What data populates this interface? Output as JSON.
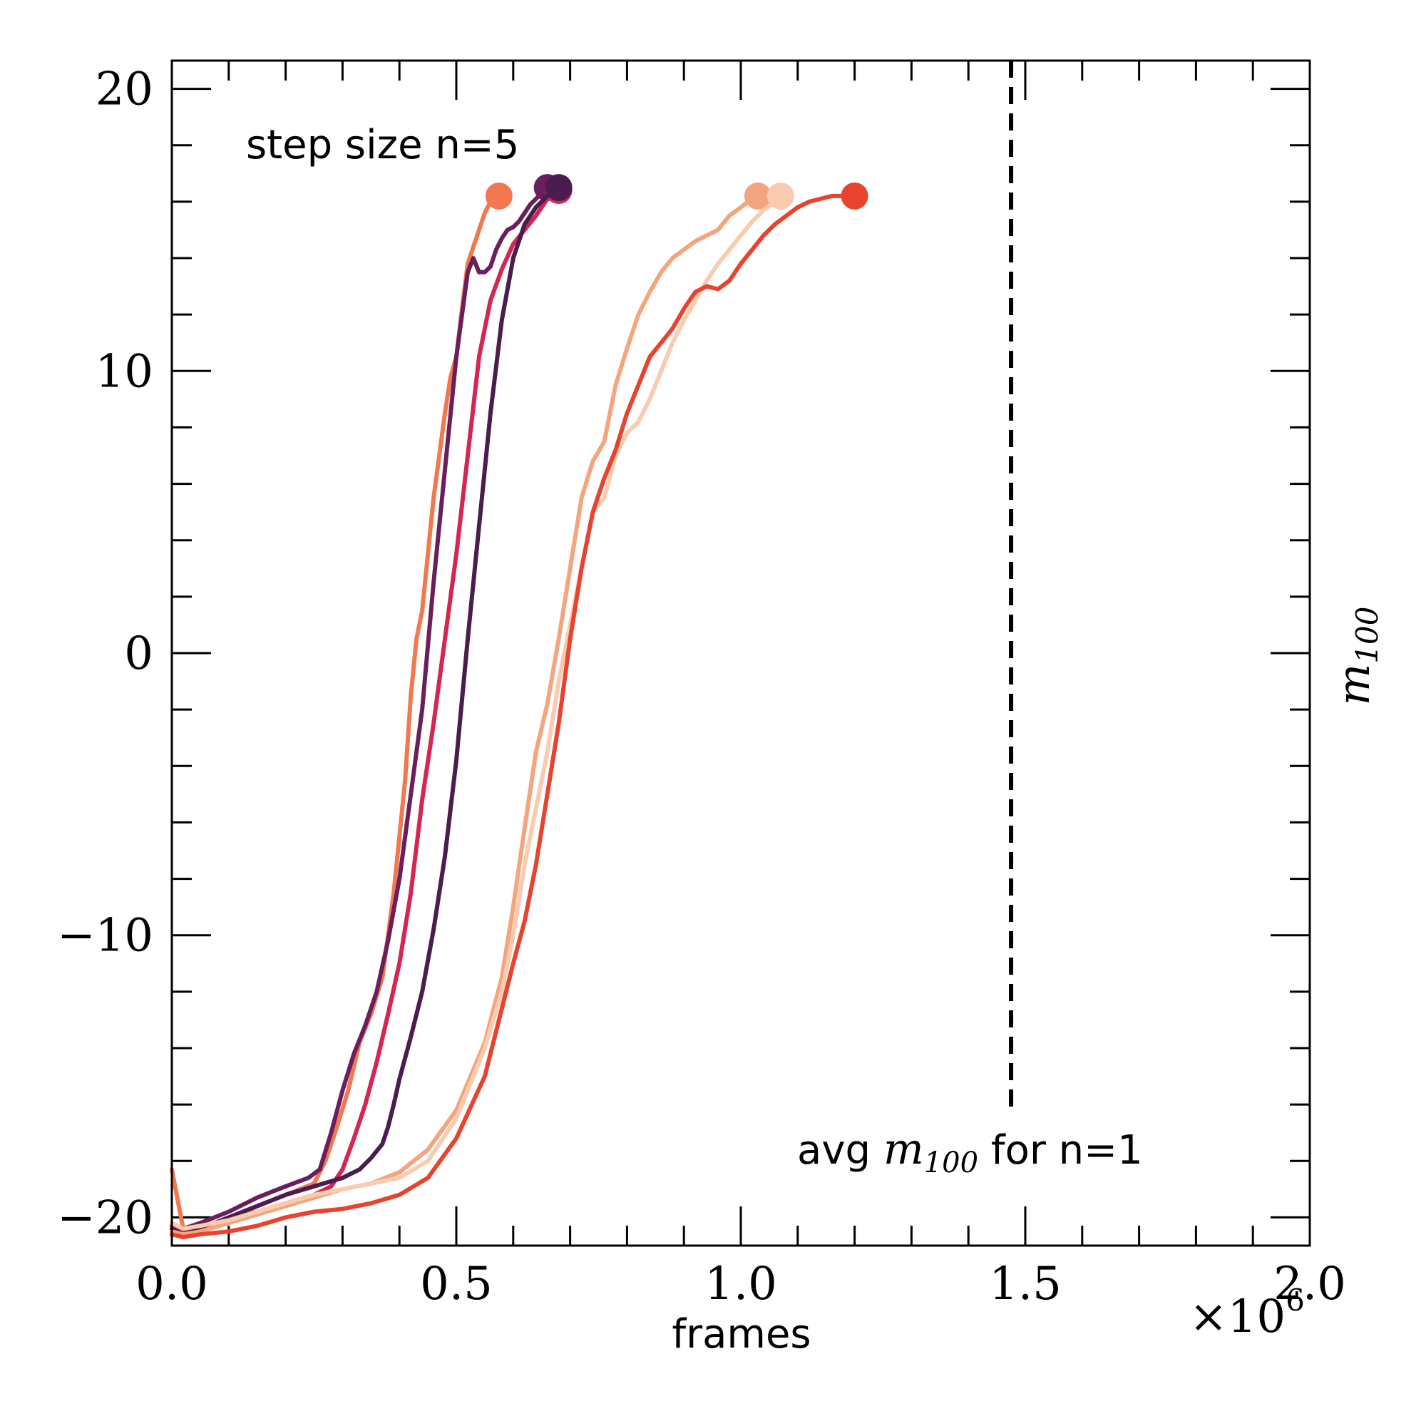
{
  "chart_data": {
    "type": "line",
    "xlabel": "frames",
    "ylabel": "m",
    "ylabel_subscript": "100",
    "x_multiplier": "×10",
    "x_multiplier_exponent": "6",
    "xlim": [
      0,
      2.0
    ],
    "ylim": [
      -21,
      21
    ],
    "x_ticks": [
      0.0,
      0.5,
      1.0,
      1.5,
      2.0
    ],
    "x_tick_labels": [
      "0.0",
      "0.5",
      "1.0",
      "1.5",
      "2.0"
    ],
    "y_ticks": [
      -20,
      -10,
      0,
      10,
      20
    ],
    "y_tick_labels": [
      "−20",
      "−10",
      "0",
      "10",
      "20"
    ],
    "grid": false,
    "annotation_top": "step size n=5",
    "annotation_bottom": {
      "prefix": "avg ",
      "math": "m",
      "math_subscript": "100",
      "suffix": " for n=1"
    },
    "reference_line": {
      "x": 1.475,
      "style": "dashed",
      "color": "#000000"
    },
    "series": [
      {
        "color": "#f3774f",
        "end_marker": true,
        "x": [
          0.0,
          0.02,
          0.05,
          0.1,
          0.15,
          0.2,
          0.25,
          0.27,
          0.29,
          0.31,
          0.33,
          0.35,
          0.37,
          0.39,
          0.4,
          0.41,
          0.42,
          0.43,
          0.44,
          0.45,
          0.46,
          0.47,
          0.48,
          0.49,
          0.5,
          0.51,
          0.52,
          0.53,
          0.54,
          0.55,
          0.56,
          0.575
        ],
        "y": [
          -18.3,
          -20.4,
          -20.3,
          -20.1,
          -19.6,
          -19.2,
          -18.8,
          -18.0,
          -16.8,
          -15.5,
          -13.8,
          -12.8,
          -11.5,
          -8.5,
          -6.5,
          -4.5,
          -1.5,
          0.5,
          1.5,
          3.5,
          5.5,
          7.0,
          8.5,
          9.8,
          10.5,
          12.2,
          13.8,
          14.4,
          15.0,
          15.6,
          16.0,
          16.2
        ]
      },
      {
        "color": "#6a1f5c",
        "end_marker": true,
        "x": [
          0.0,
          0.02,
          0.05,
          0.1,
          0.15,
          0.2,
          0.24,
          0.26,
          0.28,
          0.3,
          0.32,
          0.34,
          0.36,
          0.38,
          0.4,
          0.42,
          0.44,
          0.46,
          0.48,
          0.5,
          0.52,
          0.53,
          0.54,
          0.55,
          0.56,
          0.57,
          0.58,
          0.59,
          0.6,
          0.61,
          0.62,
          0.63,
          0.64,
          0.65,
          0.66
        ],
        "y": [
          -20.3,
          -20.4,
          -20.2,
          -19.8,
          -19.3,
          -18.9,
          -18.6,
          -18.3,
          -17.0,
          -15.5,
          -14.2,
          -13.2,
          -12.0,
          -10.2,
          -8.0,
          -5.0,
          -2.0,
          2.5,
          6.5,
          10.5,
          13.5,
          14.0,
          13.5,
          13.5,
          13.7,
          14.3,
          14.7,
          15.0,
          15.1,
          15.3,
          15.6,
          15.9,
          16.1,
          16.3,
          16.5
        ]
      },
      {
        "color": "#d6254f",
        "end_marker": true,
        "x": [
          0.0,
          0.02,
          0.05,
          0.1,
          0.15,
          0.2,
          0.25,
          0.28,
          0.3,
          0.32,
          0.34,
          0.36,
          0.38,
          0.4,
          0.42,
          0.44,
          0.46,
          0.48,
          0.5,
          0.52,
          0.54,
          0.56,
          0.58,
          0.6,
          0.62,
          0.64,
          0.66,
          0.68
        ],
        "y": [
          -20.3,
          -20.5,
          -20.3,
          -20.1,
          -19.8,
          -19.5,
          -19.2,
          -18.9,
          -18.3,
          -17.2,
          -16.0,
          -14.5,
          -12.8,
          -11.0,
          -8.5,
          -5.2,
          -2.5,
          0.5,
          3.5,
          7.0,
          10.5,
          12.5,
          13.6,
          14.5,
          15.0,
          15.5,
          16.1,
          16.4
        ]
      },
      {
        "color": "#4b1c4f",
        "end_marker": true,
        "x": [
          0.0,
          0.02,
          0.05,
          0.1,
          0.15,
          0.2,
          0.25,
          0.3,
          0.33,
          0.35,
          0.37,
          0.38,
          0.39,
          0.4,
          0.42,
          0.44,
          0.46,
          0.48,
          0.5,
          0.52,
          0.54,
          0.56,
          0.58,
          0.6,
          0.62,
          0.64,
          0.66,
          0.67,
          0.68
        ],
        "y": [
          -20.4,
          -20.6,
          -20.4,
          -20.0,
          -19.6,
          -19.2,
          -18.9,
          -18.6,
          -18.3,
          -17.9,
          -17.4,
          -16.8,
          -16.0,
          -15.1,
          -13.6,
          -12.0,
          -9.8,
          -7.2,
          -3.8,
          0.5,
          4.5,
          8.5,
          11.8,
          14.0,
          15.2,
          15.8,
          16.2,
          16.4,
          16.5
        ]
      },
      {
        "color": "#f5a57e",
        "end_marker": true,
        "x": [
          0.0,
          0.02,
          0.05,
          0.1,
          0.15,
          0.2,
          0.25,
          0.3,
          0.35,
          0.4,
          0.45,
          0.5,
          0.55,
          0.58,
          0.6,
          0.62,
          0.64,
          0.66,
          0.68,
          0.7,
          0.72,
          0.74,
          0.76,
          0.78,
          0.8,
          0.82,
          0.84,
          0.86,
          0.88,
          0.9,
          0.92,
          0.94,
          0.96,
          0.98,
          1.0,
          1.02,
          1.03
        ],
        "y": [
          -20.5,
          -20.6,
          -20.5,
          -20.2,
          -19.9,
          -19.6,
          -19.3,
          -19.0,
          -18.8,
          -18.4,
          -17.6,
          -16.2,
          -13.8,
          -11.5,
          -9.0,
          -6.2,
          -3.5,
          -1.8,
          0.5,
          3.0,
          5.5,
          6.8,
          7.5,
          9.5,
          10.8,
          12.0,
          12.8,
          13.5,
          14.0,
          14.3,
          14.6,
          14.8,
          15.0,
          15.5,
          15.8,
          16.1,
          16.2
        ]
      },
      {
        "color": "#f9ccb0",
        "end_marker": true,
        "x": [
          0.0,
          0.02,
          0.05,
          0.1,
          0.15,
          0.2,
          0.25,
          0.3,
          0.35,
          0.4,
          0.45,
          0.5,
          0.55,
          0.58,
          0.6,
          0.62,
          0.64,
          0.66,
          0.68,
          0.7,
          0.72,
          0.74,
          0.76,
          0.78,
          0.8,
          0.82,
          0.84,
          0.86,
          0.88,
          0.9,
          0.92,
          0.94,
          0.96,
          0.98,
          1.0,
          1.02,
          1.04,
          1.06,
          1.07
        ],
        "y": [
          -20.2,
          -20.4,
          -20.3,
          -20.1,
          -19.8,
          -19.5,
          -19.2,
          -19.0,
          -18.8,
          -18.6,
          -18.0,
          -16.5,
          -14.0,
          -12.0,
          -10.0,
          -7.5,
          -5.5,
          -3.5,
          -1.0,
          1.0,
          3.0,
          5.0,
          5.5,
          7.0,
          7.8,
          8.2,
          9.0,
          10.0,
          11.0,
          11.8,
          12.5,
          13.2,
          13.8,
          14.3,
          14.8,
          15.3,
          15.7,
          16.0,
          16.2
        ]
      },
      {
        "color": "#e8432f",
        "end_marker": true,
        "x": [
          0.0,
          0.02,
          0.05,
          0.1,
          0.15,
          0.2,
          0.25,
          0.3,
          0.35,
          0.4,
          0.45,
          0.5,
          0.55,
          0.6,
          0.62,
          0.64,
          0.66,
          0.68,
          0.7,
          0.72,
          0.74,
          0.76,
          0.78,
          0.8,
          0.82,
          0.84,
          0.86,
          0.88,
          0.9,
          0.92,
          0.94,
          0.96,
          0.98,
          1.0,
          1.02,
          1.04,
          1.06,
          1.08,
          1.1,
          1.12,
          1.14,
          1.16,
          1.18,
          1.2
        ],
        "y": [
          -20.6,
          -20.7,
          -20.6,
          -20.5,
          -20.3,
          -20.0,
          -19.8,
          -19.7,
          -19.5,
          -19.2,
          -18.6,
          -17.2,
          -15.0,
          -11.0,
          -9.5,
          -7.5,
          -5.0,
          -2.5,
          0.5,
          3.0,
          5.0,
          6.2,
          7.2,
          8.5,
          9.5,
          10.5,
          11.0,
          11.5,
          12.2,
          12.8,
          13.0,
          12.9,
          13.2,
          13.8,
          14.3,
          14.8,
          15.2,
          15.5,
          15.8,
          16.0,
          16.1,
          16.2,
          16.2,
          16.2
        ]
      }
    ]
  }
}
